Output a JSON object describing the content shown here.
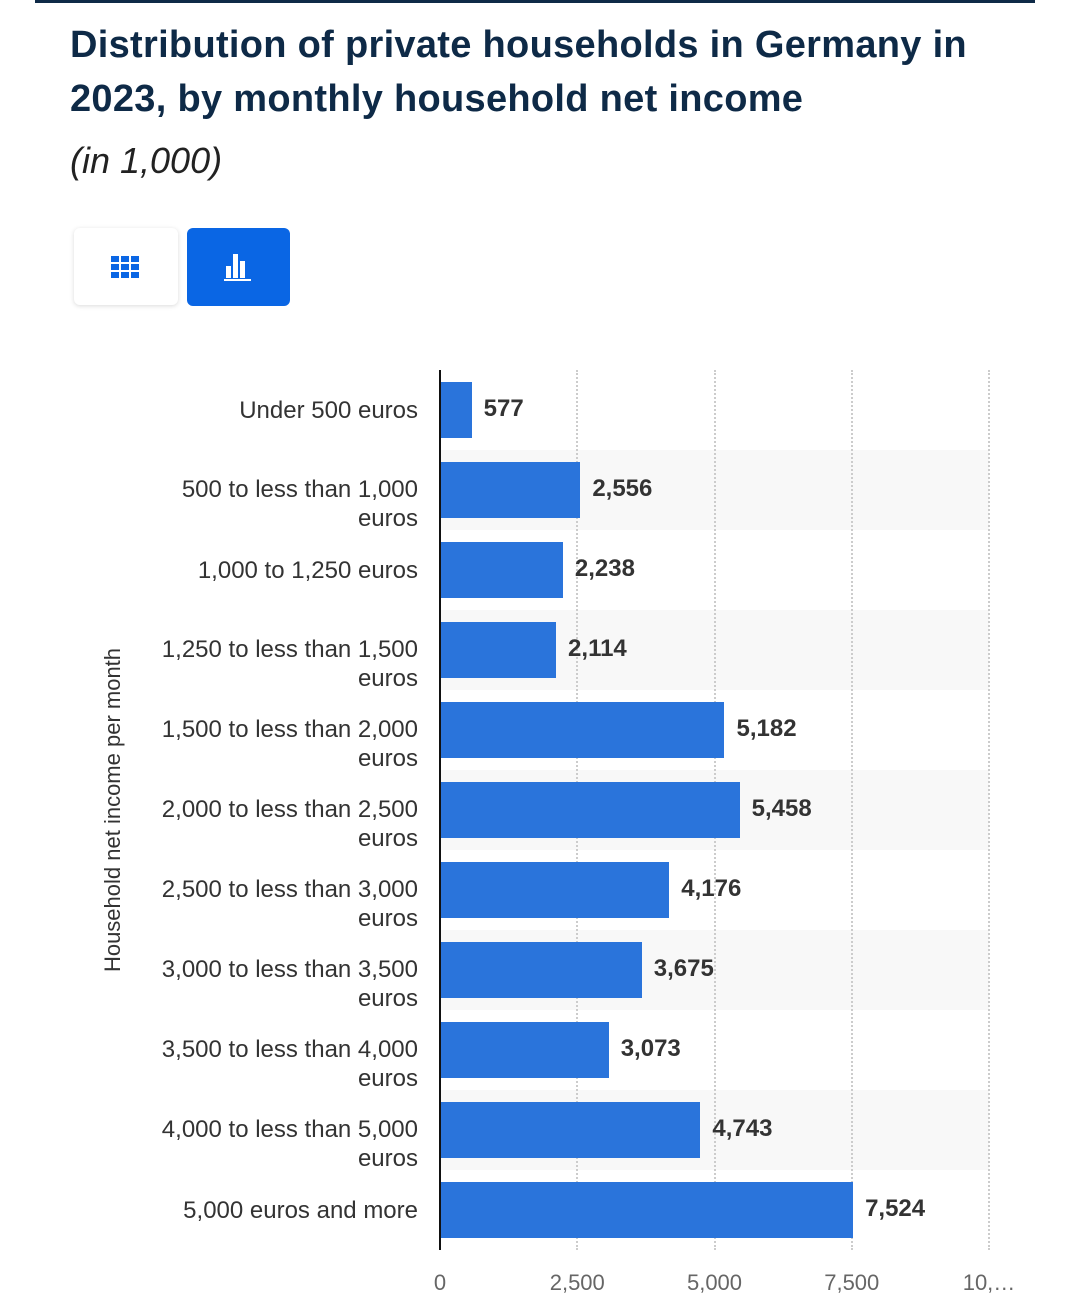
{
  "chart_data": {
    "type": "bar",
    "orientation": "horizontal",
    "title": "Distribution of private households in Germany in 2023, by monthly household net income",
    "subtitle": "(in 1,000)",
    "y_label": "Household net income per month",
    "categories": [
      "Under 500 euros",
      "500 to less than 1,000 euros",
      "1,000 to 1,250 euros",
      "1,250 to less than 1,500 euros",
      "1,500 to less than 2,000 euros",
      "2,000 to less than 2,500 euros",
      "2,500 to less than 3,000 euros",
      "3,000 to less than 3,500 euros",
      "3,500 to less than 4,000 euros",
      "4,000 to less than 5,000 euros",
      "5,000 euros and more"
    ],
    "values": [
      577,
      2556,
      2238,
      2114,
      5182,
      5458,
      4176,
      3675,
      3073,
      4743,
      7524
    ],
    "value_labels": [
      "577",
      "2,556",
      "2,238",
      "2,114",
      "5,182",
      "5,458",
      "4,176",
      "3,675",
      "3,073",
      "4,743",
      "7,524"
    ],
    "color": "#2a74db",
    "xlim": [
      0,
      10000
    ],
    "xticks": [
      0,
      {
        "value": 2500,
        "label": "2,500"
      },
      {
        "value": 5000,
        "label": "5,000"
      },
      {
        "value": 7500,
        "label": "7,500"
      },
      {
        "value": 10000,
        "label": "10,…"
      }
    ],
    "grid": true
  }
}
